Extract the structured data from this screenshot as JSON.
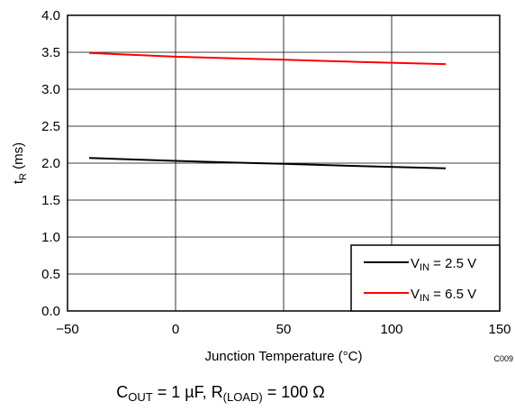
{
  "chart_data": {
    "type": "line",
    "x_label": "Junction Temperature (°C)",
    "y_label": {
      "main": "t",
      "sub": "R",
      "unit": " (ms)"
    },
    "xlim": [
      -50,
      150
    ],
    "ylim": [
      0,
      4.0
    ],
    "x_ticks": [
      "−50",
      "0",
      "50",
      "100",
      "150"
    ],
    "y_ticks": [
      "0.0",
      "0.5",
      "1.0",
      "1.5",
      "2.0",
      "2.5",
      "3.0",
      "3.5",
      "4.0"
    ],
    "grid": true,
    "legend_position": "bottom-right",
    "series": [
      {
        "name": "V_IN = 2.5 V",
        "legend": {
          "main": "V",
          "sub": "IN",
          "rest": " = 2.5 V"
        },
        "color": "#000000",
        "x": [
          -40,
          0,
          25,
          50,
          85,
          125
        ],
        "y": [
          2.07,
          2.03,
          2.01,
          1.99,
          1.96,
          1.93
        ]
      },
      {
        "name": "V_IN = 6.5 V",
        "legend": {
          "main": "V",
          "sub": "IN",
          "rest": " = 6.5 V"
        },
        "color": "#ff0000",
        "x": [
          -40,
          0,
          25,
          50,
          85,
          125
        ],
        "y": [
          3.49,
          3.44,
          3.42,
          3.4,
          3.37,
          3.34
        ]
      }
    ]
  },
  "figure_code": "C009",
  "caption": {
    "c_main": "C",
    "c_sub": "OUT",
    "c_mid": " = 1 µF, R",
    "r_sub": "(LOAD)",
    "r_rest": " = 100 Ω"
  }
}
